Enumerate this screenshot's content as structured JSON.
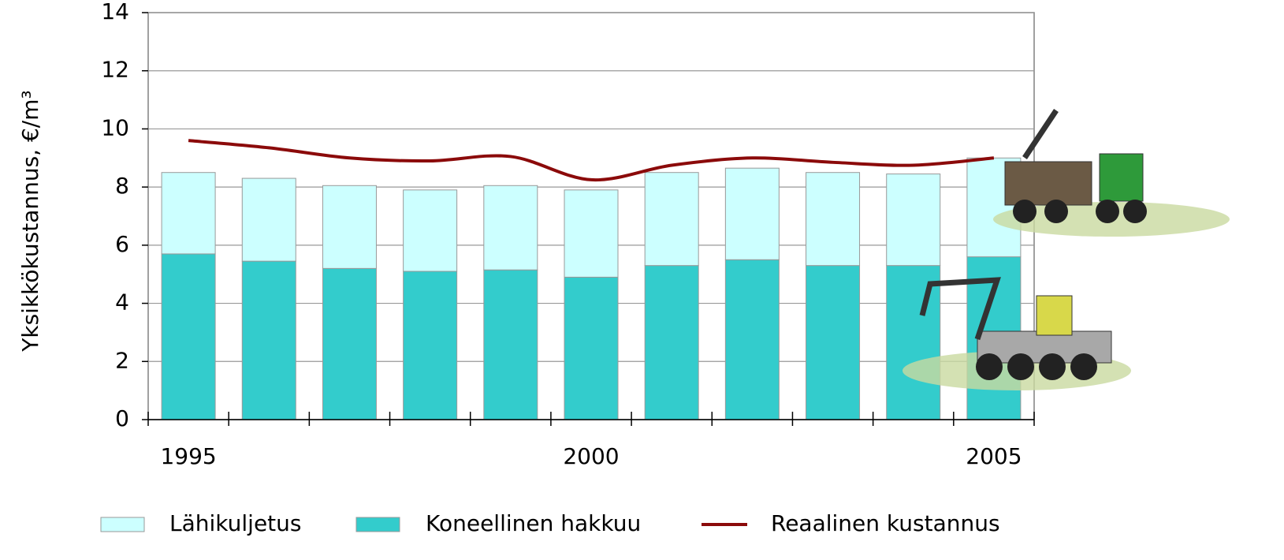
{
  "chart_data": {
    "type": "stacked-bar-line",
    "y_label": "Yksikkökustannus,  €/m³",
    "categories": [
      "1995",
      null,
      null,
      null,
      null,
      "2000",
      null,
      null,
      null,
      null,
      "2005"
    ],
    "series": [
      {
        "name": "Koneellinen hakkuu",
        "color": "#33cccc",
        "kind": "bar",
        "values": [
          5.7,
          5.45,
          5.2,
          5.1,
          5.15,
          4.9,
          5.3,
          5.5,
          5.3,
          5.3,
          5.6
        ]
      },
      {
        "name": "Lähikuljetus",
        "color": "#ccffff",
        "kind": "bar",
        "values": [
          2.8,
          2.85,
          2.85,
          2.8,
          2.9,
          3.0,
          3.2,
          3.15,
          3.2,
          3.15,
          3.4
        ]
      },
      {
        "name": "Reaalinen kustannus",
        "color": "#8b0a0a",
        "kind": "line",
        "values": [
          9.6,
          9.35,
          9.0,
          8.9,
          9.05,
          8.25,
          8.75,
          9.0,
          8.85,
          8.75,
          9.0
        ]
      }
    ],
    "ylim": [
      0,
      14
    ],
    "yticks": [
      0,
      2,
      4,
      6,
      8,
      10,
      12,
      14
    ],
    "grid": true,
    "legend_order": [
      1,
      0,
      2
    ]
  }
}
